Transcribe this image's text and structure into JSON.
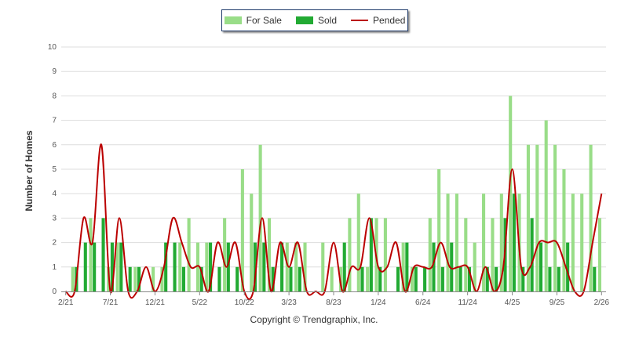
{
  "chart_data": {
    "type": "bar",
    "ylabel": "Number of Homes",
    "ylim": [
      0,
      10
    ],
    "yticks": [
      0,
      1,
      2,
      3,
      4,
      5,
      6,
      7,
      8,
      9,
      10
    ],
    "x_tick_labels": [
      "2/21",
      "7/21",
      "12/21",
      "5/22",
      "10/22",
      "3/23",
      "8/23",
      "1/24",
      "6/24",
      "11/24",
      "4/25",
      "9/25",
      "2/26"
    ],
    "legend_position": "top-center",
    "months": [
      "2/21",
      "3/21",
      "4/21",
      "5/21",
      "6/21",
      "7/21",
      "8/21",
      "9/21",
      "10/21",
      "11/21",
      "12/21",
      "1/22",
      "2/22",
      "3/22",
      "4/22",
      "5/22",
      "6/22",
      "7/22",
      "8/22",
      "9/22",
      "10/22",
      "11/22",
      "12/22",
      "1/23",
      "2/23",
      "3/23",
      "4/23",
      "5/23",
      "6/23",
      "7/23",
      "8/23",
      "9/23",
      "10/23",
      "11/23",
      "12/23",
      "1/24",
      "2/24",
      "3/24",
      "4/24",
      "5/24",
      "6/24",
      "7/24",
      "8/24",
      "9/24",
      "10/24",
      "11/24",
      "12/24",
      "1/25",
      "2/25",
      "3/25",
      "4/25",
      "5/25",
      "6/25",
      "7/25",
      "8/25",
      "9/25",
      "10/25",
      "11/25",
      "12/25",
      "1/26",
      "2/26"
    ],
    "series": [
      {
        "name": "For Sale",
        "type": "bar",
        "color": "#99dd88",
        "values": [
          0,
          1,
          0,
          3,
          0,
          1,
          2,
          0,
          1,
          0,
          1,
          1,
          0,
          2,
          3,
          2,
          2,
          0,
          3,
          0,
          5,
          4,
          6,
          3,
          0,
          2,
          2,
          2,
          0,
          2,
          1,
          1,
          3,
          4,
          1,
          3,
          3,
          0,
          2,
          1,
          0,
          3,
          5,
          4,
          4,
          3,
          2,
          4,
          3,
          4,
          8,
          4,
          6,
          6,
          7,
          6,
          5,
          4,
          4,
          6,
          3
        ]
      },
      {
        "name": "Sold",
        "type": "bar",
        "color": "#22aa33",
        "values": [
          0,
          1,
          2,
          2,
          3,
          2,
          2,
          1,
          1,
          0,
          0,
          2,
          2,
          1,
          0,
          1,
          2,
          1,
          2,
          1,
          0,
          2,
          2,
          1,
          2,
          1,
          1,
          0,
          0,
          0,
          0,
          2,
          0,
          1,
          3,
          1,
          0,
          1,
          2,
          1,
          1,
          2,
          1,
          2,
          1,
          1,
          0,
          1,
          1,
          3,
          4,
          1,
          3,
          2,
          1,
          1,
          2,
          0,
          0,
          1,
          0
        ]
      },
      {
        "name": "Pended",
        "type": "line",
        "color": "#bb0000",
        "values": [
          0,
          0,
          3,
          2,
          6,
          0,
          3,
          0,
          0,
          1,
          0,
          1,
          3,
          2,
          1,
          1,
          0,
          2,
          1,
          2,
          0,
          0,
          3,
          0,
          2,
          1,
          2,
          0,
          0,
          0,
          2,
          0,
          1,
          1,
          3,
          1,
          1,
          2,
          0,
          1,
          1,
          1,
          2,
          1,
          1,
          1,
          0,
          1,
          0,
          1,
          5,
          1,
          1,
          2,
          2,
          2,
          1,
          0,
          0,
          2,
          4
        ]
      }
    ]
  },
  "footer": {
    "copyright": "Copyright © Trendgraphix, Inc."
  },
  "colors": {
    "for_sale": "#99dd88",
    "sold": "#22aa33",
    "pended": "#bb0000",
    "grid": "#dddddd"
  }
}
